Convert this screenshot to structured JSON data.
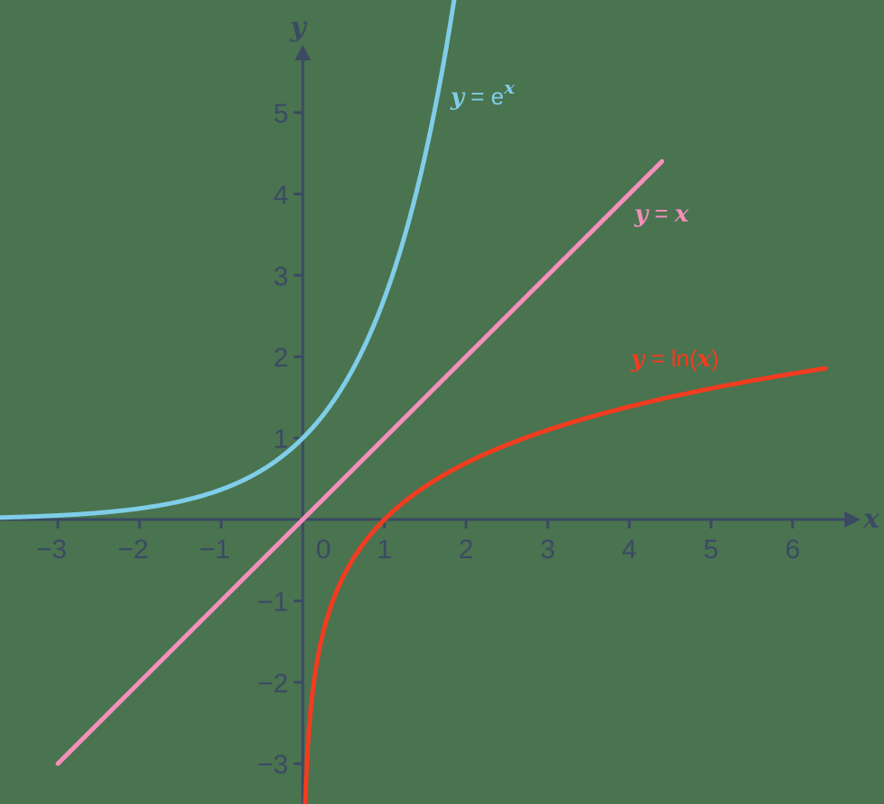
{
  "chart_data": {
    "type": "line",
    "title": "",
    "xlabel": "x",
    "ylabel": "y",
    "xlim": [
      -3.7,
      6.9
    ],
    "ylim": [
      -3.5,
      6.3
    ],
    "grid": false,
    "legend": "inline labels next to curves",
    "x_ticks": [
      -3,
      -2,
      -1,
      0,
      1,
      2,
      3,
      4,
      5,
      6
    ],
    "x_tick_labels": [
      "−3",
      "−2",
      "−1",
      "0",
      "1",
      "2",
      "3",
      "4",
      "5",
      "6"
    ],
    "y_ticks": [
      -3,
      -2,
      -1,
      1,
      2,
      3,
      4,
      5
    ],
    "y_tick_labels": [
      "−3",
      "−2",
      "−1",
      "1",
      "2",
      "3",
      "4",
      "5"
    ],
    "series": [
      {
        "name": "y = e^x",
        "function": "exp",
        "color": "#7fcde8",
        "x_range": [
          -3.7,
          1.9
        ],
        "x": [
          -3,
          -2,
          -1,
          0,
          1,
          1.5,
          1.8
        ],
        "values": [
          0.05,
          0.14,
          0.37,
          1.0,
          2.72,
          4.48,
          6.05
        ]
      },
      {
        "name": "y = x",
        "function": "identity",
        "color": "#f48fbb",
        "x_range": [
          -3,
          4.4
        ],
        "x": [
          -3,
          0,
          4.4
        ],
        "values": [
          -3,
          0,
          4.4
        ]
      },
      {
        "name": "y = ln(x)",
        "function": "ln",
        "color": "#f23c1f",
        "x_range": [
          0.03,
          6.4
        ],
        "x": [
          0.05,
          0.1,
          0.5,
          1,
          2,
          3,
          4,
          5,
          6.4
        ],
        "values": [
          -3.0,
          -2.3,
          -0.69,
          0,
          0.69,
          1.1,
          1.39,
          1.61,
          1.86
        ]
      }
    ],
    "annotations": [
      {
        "text": "y = e^x",
        "color": "#7fcde8"
      },
      {
        "text": "y = x",
        "color": "#f48fbb"
      },
      {
        "text": "y = ln(x)",
        "color": "#f23c1f"
      }
    ]
  },
  "labels": {
    "x_axis": "x",
    "y_axis": "y",
    "exp": {
      "var": "y",
      "eq": " = e",
      "sup": "x"
    },
    "identity": {
      "var": "y",
      "eq": " = ",
      "rhs": "x"
    },
    "ln": {
      "var": "y",
      "eq": " = ln(",
      "arg": "x",
      "close": ")"
    }
  },
  "colors": {
    "background": "#4a7350",
    "axis": "#3b4a63",
    "exp": "#7fcde8",
    "identity": "#f48fbb",
    "ln": "#f23c1f"
  }
}
